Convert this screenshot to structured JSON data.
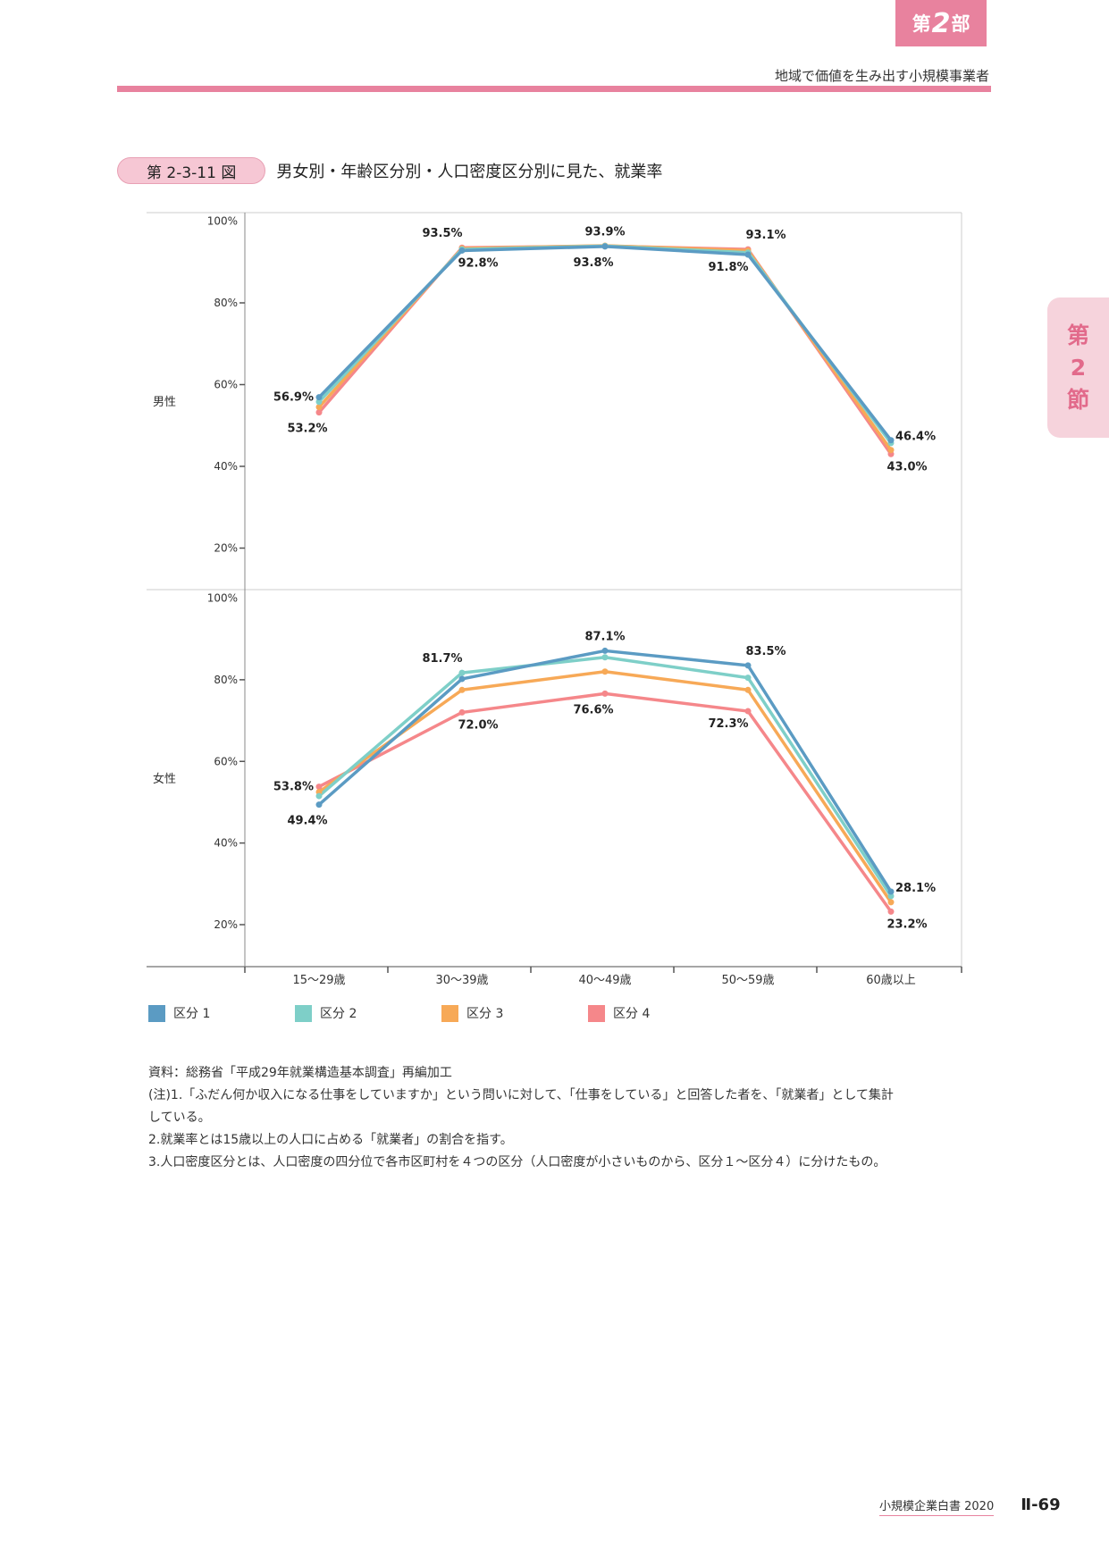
{
  "header": {
    "part_prefix": "第",
    "part_number": "2",
    "part_suffix": "部",
    "subtitle": "地域で価値を生み出す小規模事業者"
  },
  "side_tab": {
    "line1": "第",
    "line2": "2",
    "line3": "節"
  },
  "figure": {
    "badge": "第 2-3-11 図",
    "title": "男女別・年齢区分別・人口密度区分別に見た、就業率"
  },
  "chart_data": {
    "type": "line",
    "categories": [
      "15～29歳",
      "30～39歳",
      "40～49歳",
      "50～59歳",
      "60歳以上"
    ],
    "ylim": [
      15,
      100
    ],
    "yticks": [
      "100%",
      "80%",
      "60%",
      "40%",
      "20%"
    ],
    "colors": [
      "#5b9bc3",
      "#7ecfc8",
      "#f7a957",
      "#f5878a"
    ],
    "legend": [
      "区分 1",
      "区分 2",
      "区分 3",
      "区分 4"
    ],
    "panels": [
      {
        "label": "男性",
        "series": [
          {
            "name": "区分 1",
            "values": [
              56.9,
              92.8,
              93.8,
              91.8,
              46.4
            ]
          },
          {
            "name": "区分 2",
            "values": [
              55.8,
              93.1,
              93.9,
              92.3,
              45.7
            ]
          },
          {
            "name": "区分 3",
            "values": [
              54.5,
              93.3,
              94.0,
              92.8,
              44.0
            ]
          },
          {
            "name": "区分 4",
            "values": [
              53.2,
              93.5,
              93.9,
              93.1,
              43.0
            ]
          }
        ],
        "annotations": [
          {
            "text": "56.9%",
            "cat": 0,
            "value": 56.9,
            "pos": "left"
          },
          {
            "text": "53.2%",
            "cat": 0,
            "value": 53.2,
            "pos": "below"
          },
          {
            "text": "93.5%",
            "cat": 1,
            "value": 93.5,
            "pos": "above-left"
          },
          {
            "text": "92.8%",
            "cat": 1,
            "value": 92.8,
            "pos": "below-right"
          },
          {
            "text": "93.9%",
            "cat": 2,
            "value": 93.9,
            "pos": "above"
          },
          {
            "text": "93.8%",
            "cat": 2,
            "value": 93.8,
            "pos": "below"
          },
          {
            "text": "93.1%",
            "cat": 3,
            "value": 93.1,
            "pos": "above-right"
          },
          {
            "text": "91.8%",
            "cat": 3,
            "value": 91.8,
            "pos": "below-left"
          },
          {
            "text": "46.4%",
            "cat": 4,
            "value": 46.4,
            "pos": "right"
          },
          {
            "text": "43.0%",
            "cat": 4,
            "value": 43.0,
            "pos": "below-right"
          }
        ]
      },
      {
        "label": "女性",
        "series": [
          {
            "name": "区分 1",
            "values": [
              49.4,
              80.2,
              87.1,
              83.5,
              28.1
            ]
          },
          {
            "name": "区分 2",
            "values": [
              51.5,
              81.7,
              85.5,
              80.5,
              27.0
            ]
          },
          {
            "name": "区分 3",
            "values": [
              52.5,
              77.5,
              82.0,
              77.5,
              25.5
            ]
          },
          {
            "name": "区分 4",
            "values": [
              53.8,
              72.0,
              76.6,
              72.3,
              23.2
            ]
          }
        ],
        "annotations": [
          {
            "text": "53.8%",
            "cat": 0,
            "value": 53.8,
            "pos": "left"
          },
          {
            "text": "49.4%",
            "cat": 0,
            "value": 49.4,
            "pos": "below"
          },
          {
            "text": "81.7%",
            "cat": 1,
            "value": 81.7,
            "pos": "above-left"
          },
          {
            "text": "72.0%",
            "cat": 1,
            "value": 72.0,
            "pos": "below-right"
          },
          {
            "text": "87.1%",
            "cat": 2,
            "value": 87.1,
            "pos": "above"
          },
          {
            "text": "76.6%",
            "cat": 2,
            "value": 76.6,
            "pos": "below"
          },
          {
            "text": "83.5%",
            "cat": 3,
            "value": 83.5,
            "pos": "above-right"
          },
          {
            "text": "72.3%",
            "cat": 3,
            "value": 72.3,
            "pos": "below-left"
          },
          {
            "text": "28.1%",
            "cat": 4,
            "value": 28.1,
            "pos": "right"
          },
          {
            "text": "23.2%",
            "cat": 4,
            "value": 23.2,
            "pos": "below-right"
          }
        ]
      }
    ]
  },
  "notes": [
    "資料：総務省「平成29年就業構造基本調査」再編加工",
    "(注)1.「ふだん何か収入になる仕事をしていますか」という問いに対して、「仕事をしている」と回答した者を、「就業者」として集計",
    "している。",
    "2.就業率とは15歳以上の人口に占める「就業者」の割合を指す。",
    "3.人口密度区分とは、人口密度の四分位で各市区町村を４つの区分（人口密度が小さいものから、区分１～区分４）に分けたもの。"
  ],
  "footer": {
    "book": "小規模企業白書  2020",
    "page": "Ⅱ-69"
  }
}
